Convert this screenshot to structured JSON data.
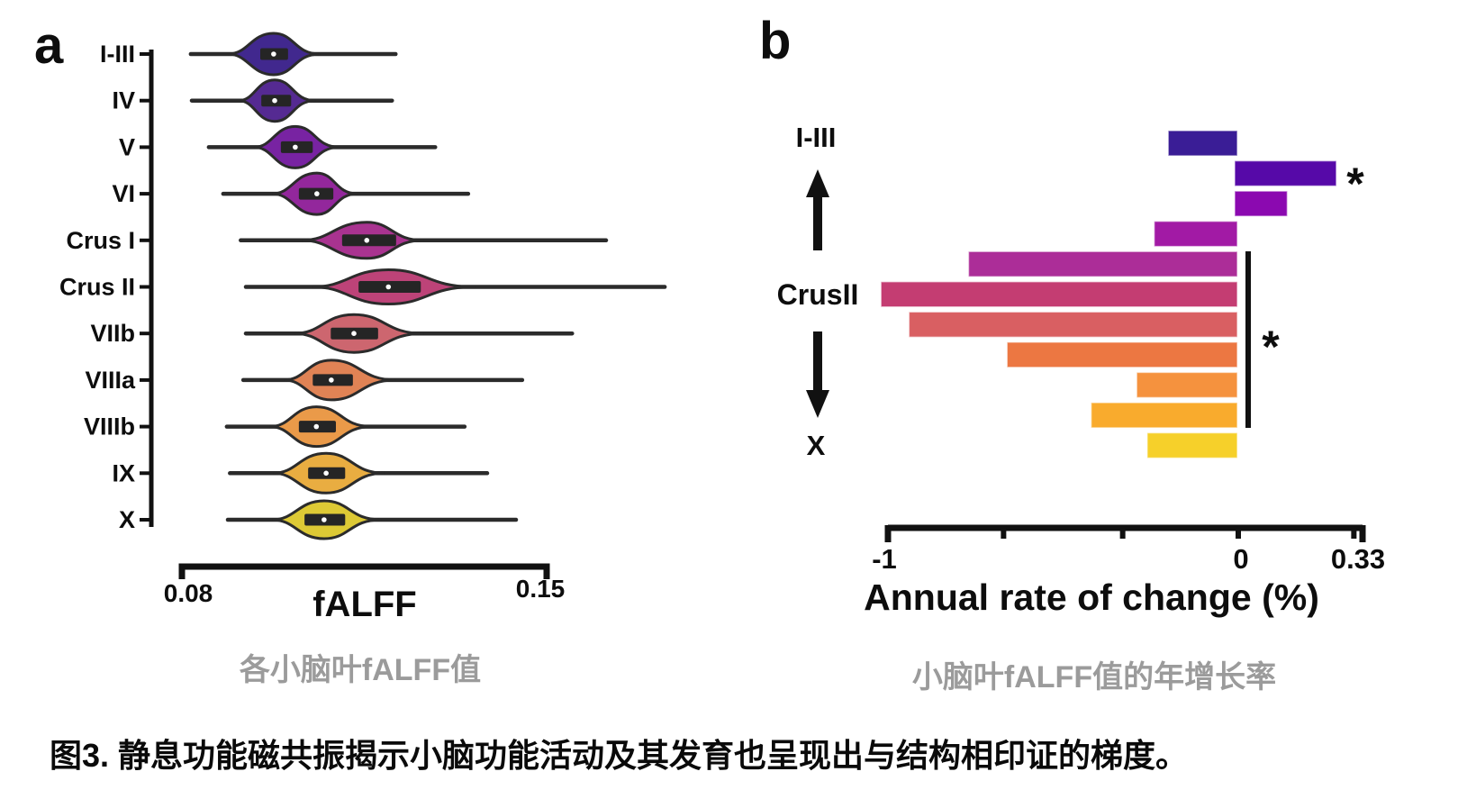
{
  "figure_caption": "图3. 静息功能磁共振揭示小脑功能活动及其发育也呈现出与结构相印证的梯度。",
  "panel_a": {
    "letter": "a",
    "caption": "各小脑叶fALFF值",
    "xlabel": "fALFF",
    "x_tick_labels": [
      "0.08",
      "0.15"
    ]
  },
  "panel_b": {
    "letter": "b",
    "caption": "小脑叶fALFF值的年增长率",
    "xlabel": "Annual rate of change (%)",
    "gradient_axis": {
      "top_label": "I-III",
      "middle_label": "CrusII",
      "bottom_label": "X",
      "up_icon": "arrow-up",
      "down_icon": "arrow-down"
    }
  },
  "chart_data": [
    {
      "type": "violin",
      "title": "",
      "xlabel": "fALFF",
      "xlim": [
        0.08,
        0.15
      ],
      "x_ticks": [
        0.08,
        0.15
      ],
      "grid": false,
      "categories": [
        "I-III",
        "IV",
        "V",
        "VI",
        "Crus I",
        "Crus II",
        "VIIb",
        "VIIIa",
        "VIIIb",
        "IX",
        "X"
      ],
      "colors": [
        "#41288e",
        "#552a92",
        "#7823a2",
        "#93279c",
        "#a93390",
        "#bd4378",
        "#cd666f",
        "#e08355",
        "#ea9a49",
        "#e9ad41",
        "#ddc935"
      ],
      "outline_color": "#2b2b2b",
      "box_color": "#252525",
      "median_dot_color": "#ffffff",
      "stats": [
        {
          "lobule": "I-III",
          "min": 0.0812,
          "q1": 0.0947,
          "median": 0.0973,
          "q3": 0.1001,
          "max": 0.121,
          "density_range": [
            0.0884,
            0.1063
          ]
        },
        {
          "lobule": "IV",
          "min": 0.0814,
          "q1": 0.0949,
          "median": 0.0975,
          "q3": 0.1007,
          "max": 0.1203,
          "density_range": [
            0.0905,
            0.1054
          ]
        },
        {
          "lobule": "V",
          "min": 0.0847,
          "q1": 0.0987,
          "median": 0.1015,
          "q3": 0.1049,
          "max": 0.1287,
          "density_range": [
            0.0935,
            0.1101
          ]
        },
        {
          "lobule": "VI",
          "min": 0.0875,
          "q1": 0.1022,
          "median": 0.1057,
          "q3": 0.1089,
          "max": 0.1351,
          "density_range": [
            0.097,
            0.1136
          ]
        },
        {
          "lobule": "Crus I",
          "min": 0.0909,
          "q1": 0.1106,
          "median": 0.1154,
          "q3": 0.1211,
          "max": 0.1619,
          "density_range": [
            0.1028,
            0.1264
          ]
        },
        {
          "lobule": "Crus II",
          "min": 0.0919,
          "q1": 0.1138,
          "median": 0.1196,
          "q3": 0.1259,
          "max": 0.1733,
          "density_range": [
            0.1049,
            0.1364
          ]
        },
        {
          "lobule": "VIIb",
          "min": 0.0919,
          "q1": 0.1084,
          "median": 0.1129,
          "q3": 0.1176,
          "max": 0.1553,
          "density_range": [
            0.1014,
            0.1264
          ]
        },
        {
          "lobule": "VIIIa",
          "min": 0.0914,
          "q1": 0.1049,
          "median": 0.1085,
          "q3": 0.1127,
          "max": 0.1456,
          "density_range": [
            0.0993,
            0.1211
          ]
        },
        {
          "lobule": "VIIIb",
          "min": 0.0882,
          "q1": 0.1022,
          "median": 0.1056,
          "q3": 0.1094,
          "max": 0.1344,
          "density_range": [
            0.0966,
            0.1164
          ]
        },
        {
          "lobule": "IX",
          "min": 0.0888,
          "q1": 0.104,
          "median": 0.1075,
          "q3": 0.1112,
          "max": 0.1388,
          "density_range": [
            0.0972,
            0.1189
          ]
        },
        {
          "lobule": "X",
          "min": 0.0884,
          "q1": 0.1033,
          "median": 0.1071,
          "q3": 0.1112,
          "max": 0.1444,
          "density_range": [
            0.097,
            0.1182
          ]
        }
      ]
    },
    {
      "type": "bar",
      "orientation": "horizontal",
      "title": "",
      "xlabel": "Annual rate of change (%)",
      "xlim": [
        -1.05,
        0.35
      ],
      "grid": false,
      "x_ticks": [
        {
          "value": -1,
          "label": "-1"
        },
        {
          "value": -0.67,
          "label": ""
        },
        {
          "value": -0.33,
          "label": ""
        },
        {
          "value": 0,
          "label": "0"
        },
        {
          "value": 0.33,
          "label": "0.33"
        }
      ],
      "categories": [
        "I-III",
        "IV",
        "V",
        "VI",
        "Crus I",
        "Crus II",
        "VIIb",
        "VIIIa",
        "VIIIb",
        "IX",
        "X"
      ],
      "values": [
        -0.2,
        0.28,
        0.14,
        -0.24,
        -0.77,
        -1.02,
        -0.94,
        -0.66,
        -0.29,
        -0.42,
        -0.26
      ],
      "colors": [
        "#3a1d96",
        "#5609a8",
        "#8b09b0",
        "#a21aa5",
        "#ac2d98",
        "#c43d72",
        "#d95f62",
        "#ec7742",
        "#f5923e",
        "#f9ab2d",
        "#f6d02a"
      ],
      "significance": [
        {
          "category": "IV",
          "symbol": "*",
          "marker": "star"
        },
        {
          "categories": [
            "Crus I",
            "Crus II",
            "VIIb",
            "VIIIa",
            "VIIIb",
            "IX"
          ],
          "symbol": "*",
          "marker": "bracket"
        }
      ]
    }
  ]
}
